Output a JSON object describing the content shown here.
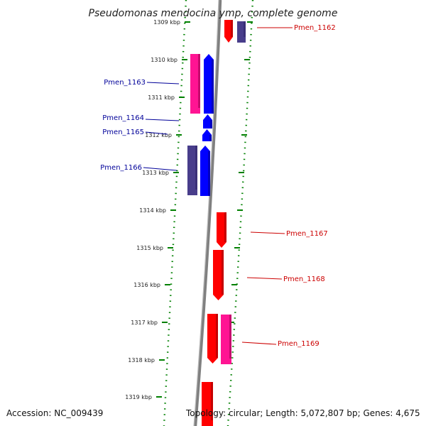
{
  "title": "Pseudomonas mendocina ymp, complete genome",
  "accession": "Accession: NC_009439",
  "topology": "Topology: circular; Length: 5,072,807 bp; Genes: 4,675",
  "colors": {
    "forward": "#ff0000",
    "reverse": "#0000ff",
    "forward_alt": "#ff1493",
    "reverse_alt": "#483d8b",
    "tick": "#008000",
    "backbone": "#808080",
    "label_forward": "#cc0000",
    "label_reverse": "#000099"
  },
  "ticks": [
    {
      "kbp": 1309,
      "label": "1309 kbp"
    },
    {
      "kbp": 1310,
      "label": "1310 kbp"
    },
    {
      "kbp": 1311,
      "label": "1311 kbp"
    },
    {
      "kbp": 1312,
      "label": "1312 kbp"
    },
    {
      "kbp": 1313,
      "label": "1313 kbp"
    },
    {
      "kbp": 1314,
      "label": "1314 kbp"
    },
    {
      "kbp": 1315,
      "label": "1315 kbp"
    },
    {
      "kbp": 1316,
      "label": "1316 kbp"
    },
    {
      "kbp": 1317,
      "label": "1317 kbp"
    },
    {
      "kbp": 1318,
      "label": "1318 kbp"
    },
    {
      "kbp": 1319,
      "label": "1319 kbp"
    }
  ],
  "genes": [
    {
      "name": "Pmen_1162",
      "strand": "+",
      "labeled": true
    },
    {
      "name": "Pmen_1163",
      "strand": "-",
      "labeled": true
    },
    {
      "name": "Pmen_1164",
      "strand": "-",
      "labeled": true
    },
    {
      "name": "Pmen_1165",
      "strand": "-",
      "labeled": true
    },
    {
      "name": "Pmen_1166",
      "strand": "-",
      "labeled": true
    },
    {
      "name": "Pmen_1167",
      "strand": "+",
      "labeled": true
    },
    {
      "name": "Pmen_1168",
      "strand": "+",
      "labeled": true
    },
    {
      "name": "Pmen_1169",
      "strand": "+",
      "labeled": true
    }
  ]
}
